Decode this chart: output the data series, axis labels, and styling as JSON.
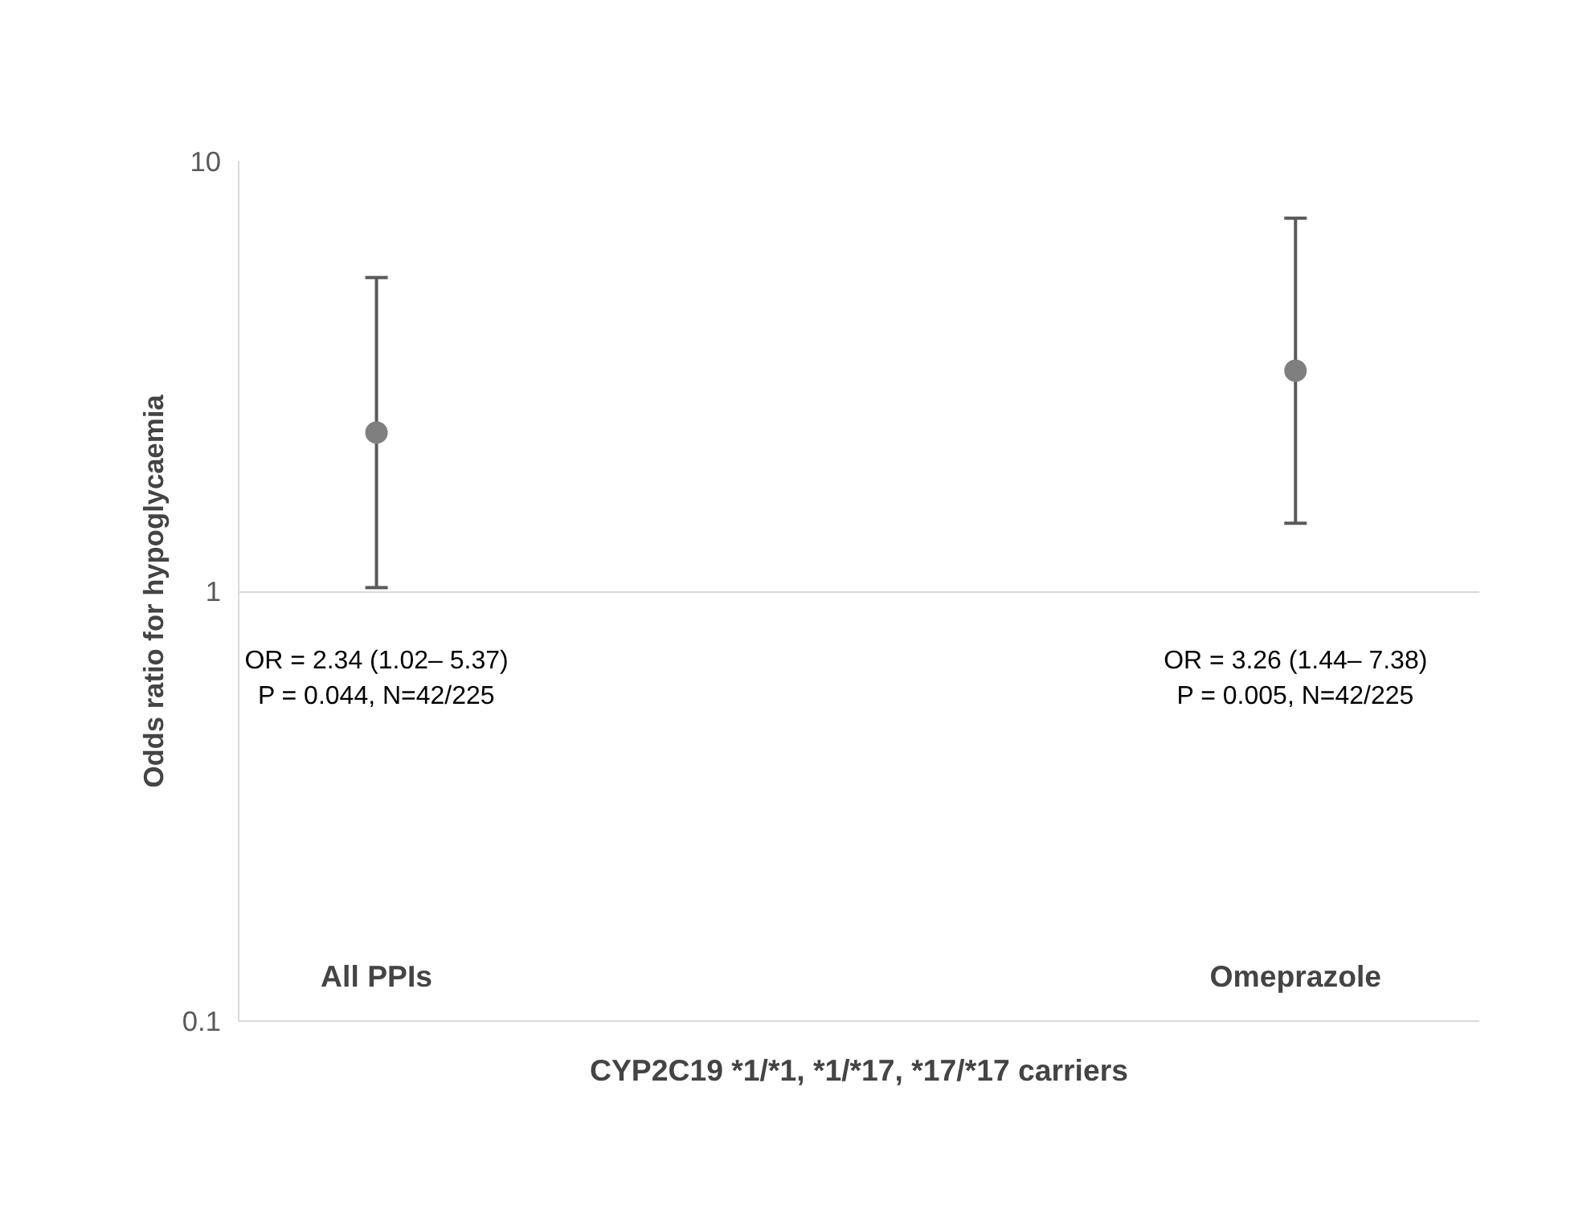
{
  "chart_data": {
    "type": "scatter",
    "categories": [
      "All PPIs",
      "Omeprazole"
    ],
    "series": [
      {
        "color": "#7f7f7f",
        "values": [
          2.34,
          3.26
        ],
        "errors": [
          [
            1.02,
            5.37
          ],
          [
            1.44,
            7.38
          ]
        ]
      }
    ],
    "ylabel": "Odds ratio for hypoglycaemia",
    "xlabel": "CYP2C19 *1/*1, *1/*17, *17/*17 carriers",
    "ylim": [
      0.1,
      10
    ],
    "yticks": [
      0.1,
      1,
      10
    ],
    "log": "y",
    "grid": "y",
    "marker": "circle",
    "annotations": [
      "OR = 2.34 (1.02– 5.37)\nP = 0.044, N=42/225",
      "OR = 3.26 (1.44– 7.38)\nP = 0.005, N=42/225"
    ]
  }
}
